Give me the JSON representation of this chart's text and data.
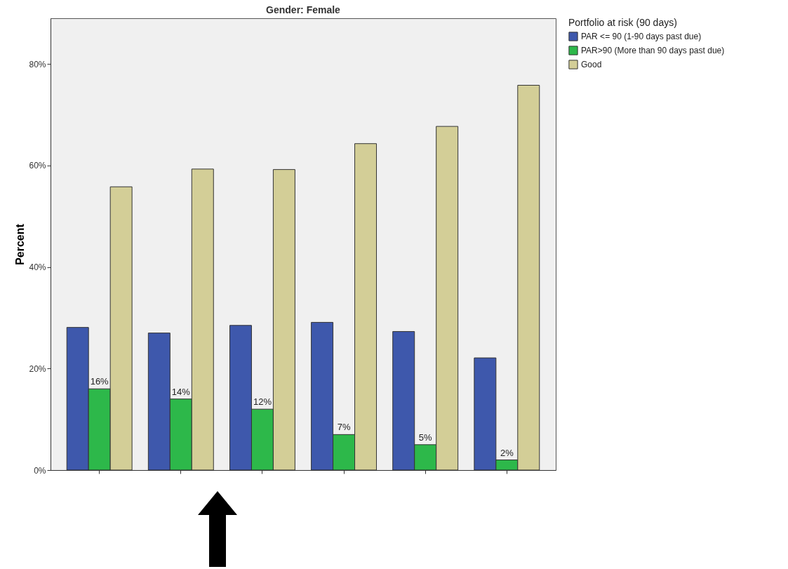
{
  "chart_data": {
    "type": "bar",
    "title": "Gender: Female",
    "ylabel": "Percent",
    "legend_title": "Portfolio at risk (90 days)",
    "categories": [
      null,
      null,
      null,
      null,
      null,
      null
    ],
    "series": [
      {
        "name": "PAR <= 90 (1-90 days past due)",
        "color": "#3e58ac",
        "values": [
          28.1,
          27.0,
          28.5,
          29.1,
          27.3,
          22.1
        ]
      },
      {
        "name": "PAR>90 (More than 90 days past due)",
        "color": "#2db84a",
        "values": [
          16,
          14,
          12,
          7,
          5,
          2
        ],
        "value_labels": [
          "16%",
          "14%",
          "12%",
          "7%",
          "5%",
          "2%"
        ]
      },
      {
        "name": "Good",
        "color": "#d3ce97",
        "values": [
          55.8,
          59.3,
          59.2,
          64.3,
          67.7,
          75.8
        ]
      }
    ],
    "ylim": [
      0,
      89
    ],
    "yticks": [
      {
        "value": 0,
        "label": "0%"
      },
      {
        "value": 20,
        "label": "20%"
      },
      {
        "value": 40,
        "label": "40%"
      },
      {
        "value": 60,
        "label": "60%"
      },
      {
        "value": 80,
        "label": "80%"
      }
    ],
    "grid": false,
    "legend": "top right",
    "tick_labels": "y"
  }
}
